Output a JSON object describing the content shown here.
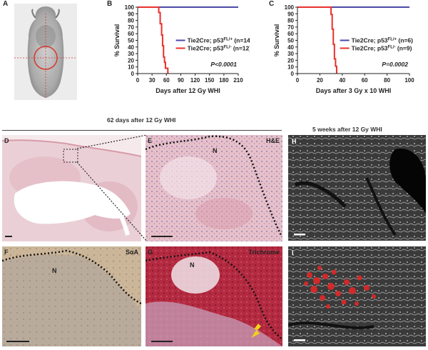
{
  "figure": {
    "panel_labels": {
      "A": "A",
      "B": "B",
      "C": "C",
      "D": "D",
      "E": "E",
      "F": "F",
      "G": "G",
      "H": "H",
      "I": "I"
    },
    "header_left": "62 days after 12 Gy WHI",
    "header_right": "5 weeks after 12 Gy WHI",
    "stain_e": "H&E",
    "stain_f": "SαA",
    "stain_g": "Trichrome",
    "necrosis_label": "N",
    "colors": {
      "blue": "#4a4aa8",
      "red": "#e8312c",
      "yellow": "#f2d21a"
    }
  },
  "chart_data": [
    {
      "panel": "B",
      "type": "line",
      "title": "",
      "xlabel": "Days after 12 Gy WHI",
      "ylabel": "% Survival",
      "xlim": [
        0,
        210
      ],
      "ylim": [
        0,
        100
      ],
      "xticks": [
        0,
        30,
        60,
        90,
        120,
        150,
        180,
        210
      ],
      "yticks": [
        0,
        10,
        20,
        30,
        40,
        50,
        60,
        70,
        80,
        90,
        100
      ],
      "series": [
        {
          "name": "Tie2Cre; p53FL/+ (n=14)",
          "base": "Tie2Cre; p53",
          "sup": "FL/+",
          "tail": " (n=14)",
          "color": "blue",
          "x": [
            0,
            210
          ],
          "y": [
            100,
            100
          ]
        },
        {
          "name": "Tie2Cre; p53FL/- (n=12)",
          "base": "Tie2Cre; p53",
          "sup": "FL/-",
          "tail": " (n=12)",
          "color": "red",
          "x": [
            0,
            44,
            44,
            47,
            47,
            50,
            50,
            52,
            52,
            54,
            54,
            56,
            56,
            58,
            58,
            63,
            63
          ],
          "y": [
            100,
            100,
            92,
            92,
            75,
            75,
            58,
            58,
            42,
            42,
            25,
            25,
            17,
            17,
            8,
            8,
            0
          ]
        }
      ],
      "pvalue": "P<0.0001",
      "legend_placement": "center-right"
    },
    {
      "panel": "C",
      "type": "line",
      "title": "",
      "xlabel": "Days after 3 Gy x 10 WHI",
      "ylabel": "% Survival",
      "xlim": [
        0,
        100
      ],
      "ylim": [
        0,
        100
      ],
      "xticks": [
        0,
        20,
        40,
        60,
        80,
        100
      ],
      "yticks": [
        0,
        10,
        20,
        30,
        40,
        50,
        60,
        70,
        80,
        90,
        100
      ],
      "series": [
        {
          "name": "Tie2Cre; p53FL/+ (n=6)",
          "base": "Tie2Cre; p53",
          "sup": "FL/+",
          "tail": " (n=6)",
          "color": "blue",
          "x": [
            0,
            100
          ],
          "y": [
            100,
            100
          ]
        },
        {
          "name": "Tie2Cre; p53FL/- (n=9)",
          "base": "Tie2Cre; p53",
          "sup": "FL/-",
          "tail": " (n=9)",
          "color": "red",
          "x": [
            0,
            30,
            30,
            31,
            31,
            32,
            32,
            33,
            33,
            34,
            34,
            35,
            35
          ],
          "y": [
            100,
            100,
            89,
            89,
            67,
            67,
            44,
            44,
            22,
            22,
            11,
            11,
            0
          ]
        }
      ],
      "pvalue": "P=0.0002",
      "legend_placement": "center-right"
    }
  ]
}
